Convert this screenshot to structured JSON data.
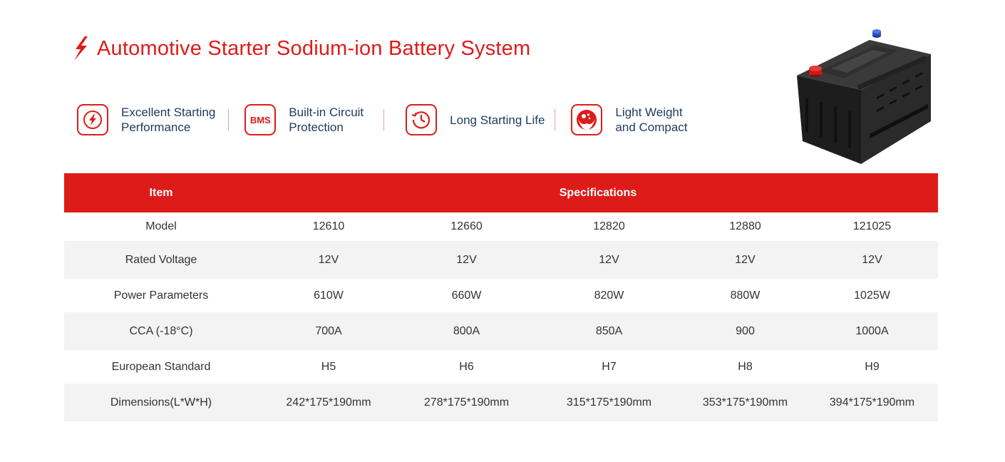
{
  "header": {
    "title": "Automotive Starter Sodium-ion Battery System",
    "accent_color": "#dd1c1a",
    "title_icon": "lightning-bolt-icon"
  },
  "features": [
    {
      "icon": "lightning-circle-icon",
      "line1": "Excellent Starting",
      "line2": "Performance"
    },
    {
      "icon": "bms-icon",
      "badge": "BMS",
      "line1": "Built-in Circuit",
      "line2": "Protection"
    },
    {
      "icon": "clock-history-icon",
      "line1": "Long Starting Life",
      "line2": ""
    },
    {
      "icon": "feather-weight-icon",
      "line1": "Light Weight",
      "line2": "and Compact"
    }
  ],
  "product_image": "car-battery-image",
  "table": {
    "headers": {
      "item": "Item",
      "spec": "Specifications"
    },
    "rows": [
      {
        "label": "Model",
        "values": [
          "12610",
          "12660",
          "12820",
          "12880",
          "121025"
        ]
      },
      {
        "label": "Rated Voltage",
        "values": [
          "12V",
          "12V",
          "12V",
          "12V",
          "12V"
        ]
      },
      {
        "label": "Power Parameters",
        "values": [
          "610W",
          "660W",
          "820W",
          "880W",
          "1025W"
        ]
      },
      {
        "label": "CCA (-18°C)",
        "values": [
          "700A",
          "800A",
          "850A",
          "900",
          "1000A"
        ]
      },
      {
        "label": "European Standard",
        "values": [
          "H5",
          "H6",
          "H7",
          "H8",
          "H9"
        ]
      },
      {
        "label": "Dimensions(L*W*H)",
        "values": [
          "242*175*190mm",
          "278*175*190mm",
          "315*175*190mm",
          "353*175*190mm",
          "394*175*190mm"
        ]
      }
    ]
  }
}
